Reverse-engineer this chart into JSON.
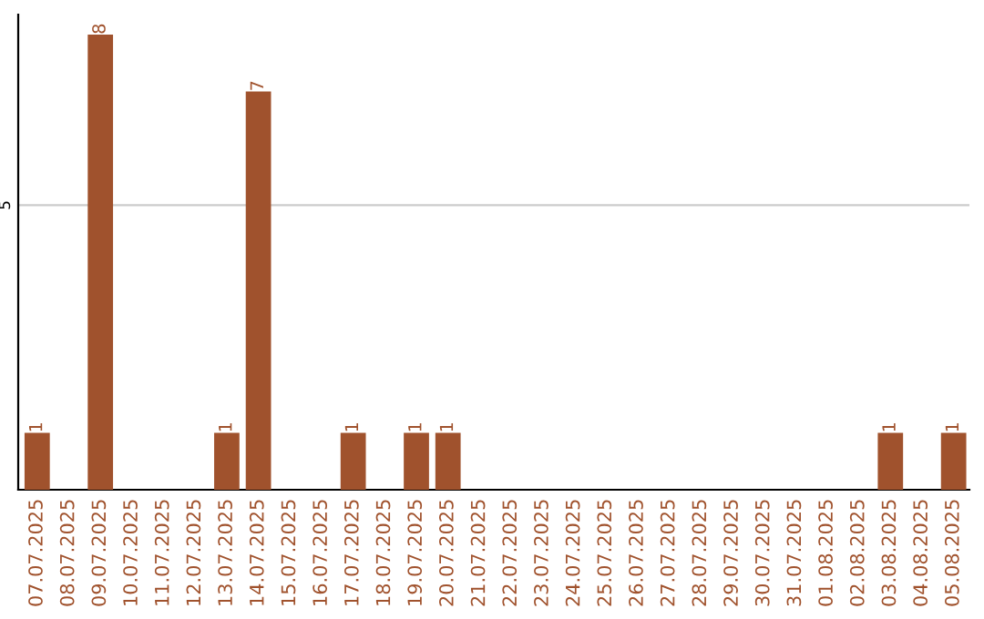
{
  "chart_data": {
    "type": "bar",
    "categories": [
      "07.07.2025",
      "08.07.2025",
      "09.07.2025",
      "10.07.2025",
      "11.07.2025",
      "12.07.2025",
      "13.07.2025",
      "14.07.2025",
      "15.07.2025",
      "16.07.2025",
      "17.07.2025",
      "18.07.2025",
      "19.07.2025",
      "20.07.2025",
      "21.07.2025",
      "22.07.2025",
      "23.07.2025",
      "24.07.2025",
      "25.07.2025",
      "26.07.2025",
      "27.07.2025",
      "28.07.2025",
      "29.07.2025",
      "30.07.2025",
      "31.07.2025",
      "01.08.2025",
      "02.08.2025",
      "03.08.2025",
      "04.08.2025",
      "05.08.2025"
    ],
    "values": [
      1,
      0,
      8,
      0,
      0,
      0,
      1,
      7,
      0,
      0,
      1,
      0,
      1,
      1,
      0,
      0,
      0,
      0,
      0,
      0,
      0,
      0,
      0,
      0,
      0,
      0,
      0,
      1,
      0,
      1
    ],
    "value_labels": [
      "1",
      null,
      "8",
      null,
      null,
      null,
      "1",
      "7",
      null,
      null,
      "1",
      null,
      "1",
      "1",
      null,
      null,
      null,
      null,
      null,
      null,
      null,
      null,
      null,
      null,
      null,
      null,
      null,
      "1",
      null,
      "1"
    ],
    "color": "#a0522d",
    "ylim": [
      0,
      8.35
    ],
    "yticks": [
      5
    ],
    "grid": "y"
  }
}
